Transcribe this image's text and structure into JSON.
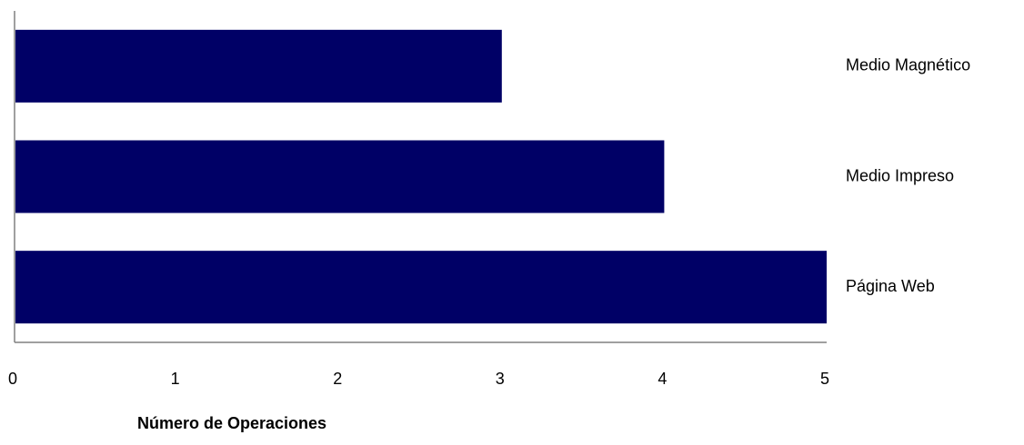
{
  "chart_data": {
    "type": "bar",
    "orientation": "horizontal",
    "categories": [
      "Medio Magnético",
      "Medio Impreso",
      "Página Web"
    ],
    "values": [
      3,
      4,
      5
    ],
    "title": "",
    "xlabel": "Número de Operaciones",
    "ylabel": "",
    "xlim": [
      0,
      5
    ],
    "x_ticks": [
      "0",
      "1",
      "2",
      "3",
      "4",
      "5"
    ],
    "grid": false,
    "legend": "none",
    "bar_color": "#000066",
    "axis_color": "#808080",
    "category_label_position": "right"
  }
}
